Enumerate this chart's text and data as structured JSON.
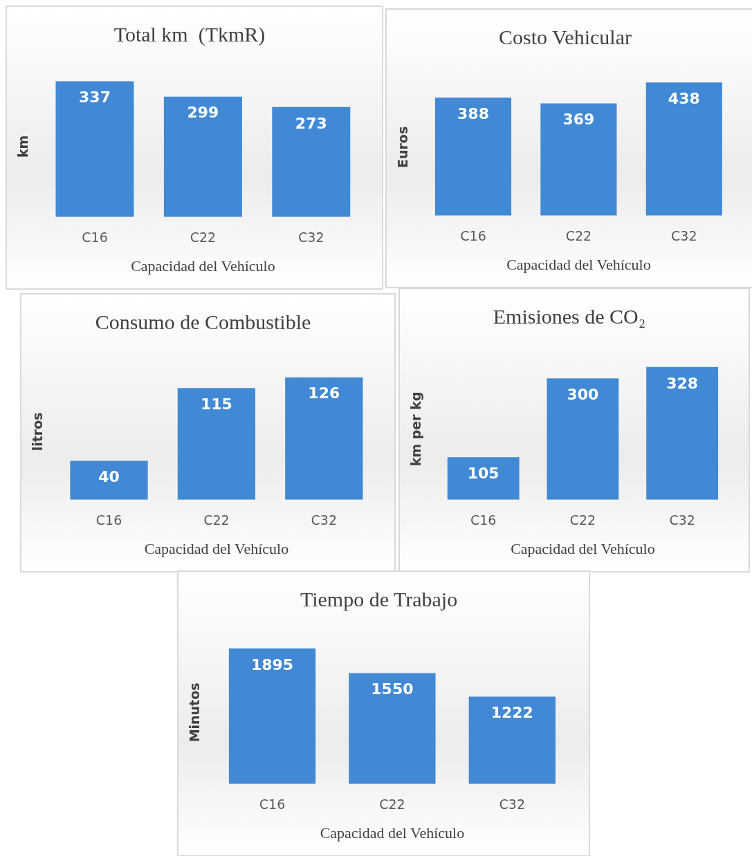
{
  "chart_data": [
    {
      "type": "bar",
      "title": "Total km  (TkmR)",
      "xlabel": "Capacidad del Vehículo",
      "ylabel": "km",
      "categories": [
        "C16",
        "C22",
        "C32"
      ],
      "values": [
        337,
        299,
        273
      ],
      "color": "#4189d4",
      "data_labels": true
    },
    {
      "type": "bar",
      "title": "Costo Vehicular",
      "xlabel": "Capacidad del Vehículo",
      "ylabel": "Euros",
      "categories": [
        "C16",
        "C22",
        "C32"
      ],
      "values": [
        388,
        369,
        438
      ],
      "color": "#4189d4",
      "data_labels": true
    },
    {
      "type": "bar",
      "title": "Consumo de Combustible",
      "xlabel": "Capacidad del Vehículo",
      "ylabel": "litros",
      "categories": [
        "C16",
        "C22",
        "C32"
      ],
      "values": [
        40,
        115,
        126
      ],
      "color": "#4189d4",
      "data_labels": true
    },
    {
      "type": "bar",
      "title": "Emisiones de CO₂",
      "xlabel": "Capacidad del Vehículo",
      "ylabel": "km per kg",
      "categories": [
        "C16",
        "C22",
        "C32"
      ],
      "values": [
        105,
        300,
        328
      ],
      "color": "#4189d4",
      "data_labels": true
    },
    {
      "type": "bar",
      "title": "Tiempo de Trabajo",
      "xlabel": "Capacidad del Vehículo",
      "ylabel": "Minutos",
      "categories": [
        "C16",
        "C22",
        "C32"
      ],
      "values": [
        1895,
        1550,
        1222
      ],
      "color": "#4189d4",
      "data_labels": true
    }
  ]
}
